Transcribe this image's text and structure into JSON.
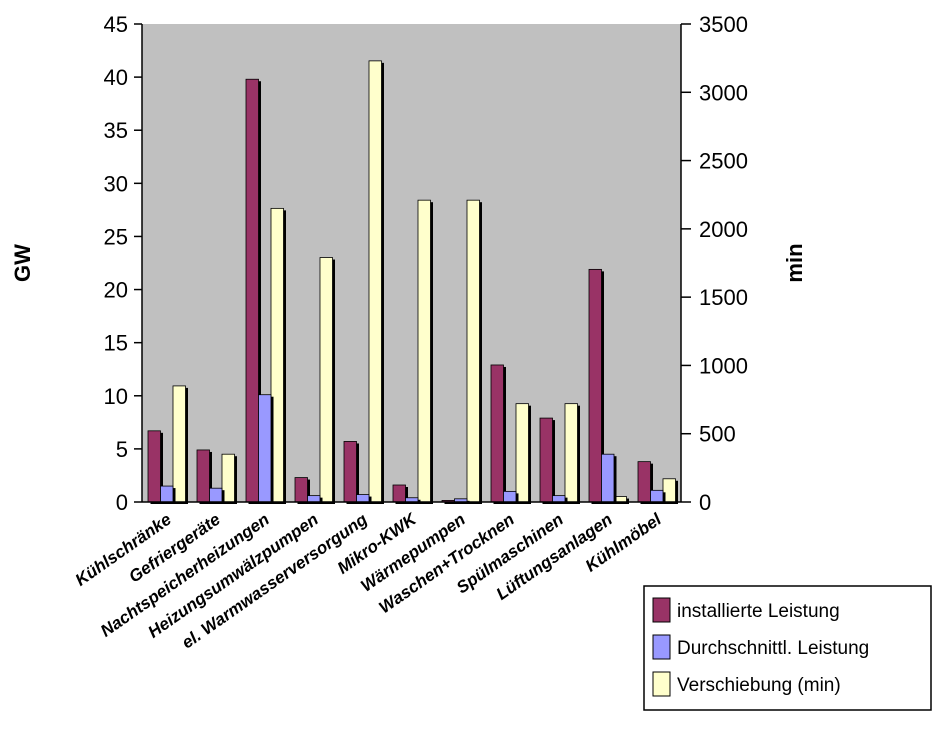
{
  "chart_data": {
    "type": "bar",
    "title": "",
    "ylabel": "GW",
    "y2label": "min",
    "ylim": [
      0,
      45
    ],
    "y2lim": [
      0,
      3500
    ],
    "yticks": [
      0,
      5,
      10,
      15,
      20,
      25,
      30,
      35,
      40,
      45
    ],
    "y2ticks": [
      0,
      500,
      1000,
      1500,
      2000,
      2500,
      3000,
      3500
    ],
    "grid": false,
    "plot_background": "#c0c0c0",
    "legend_position": "bottom-right",
    "categories": [
      "Kühlschränke",
      "Gefriergeräte",
      "Nachtspeicherheizungen",
      "Heizungsumwälzpumpen",
      "el. Warmwasserversorgung",
      "Mikro-KWK",
      "Wärmepumpen",
      "Waschen+Trocknen",
      "Spülmaschinen",
      "Lüftungsanlagen",
      "Kühlmöbel"
    ],
    "series": [
      {
        "name": "installierte Leistung",
        "axis": "left",
        "color": "#993366",
        "values": [
          6.7,
          4.9,
          39.8,
          2.3,
          5.7,
          1.6,
          0.15,
          12.9,
          7.9,
          21.9,
          3.8
        ]
      },
      {
        "name": "Durchschnittl. Leistung",
        "axis": "left",
        "color": "#9999ff",
        "values": [
          1.5,
          1.3,
          10.1,
          0.6,
          0.7,
          0.4,
          0.3,
          1.0,
          0.6,
          4.5,
          1.1
        ]
      },
      {
        "name": "Verschiebung (min)",
        "axis": "right",
        "color": "#ffffcc",
        "values": [
          850,
          350,
          2150,
          1790,
          3230,
          2210,
          2210,
          720,
          720,
          40,
          170
        ]
      }
    ]
  }
}
